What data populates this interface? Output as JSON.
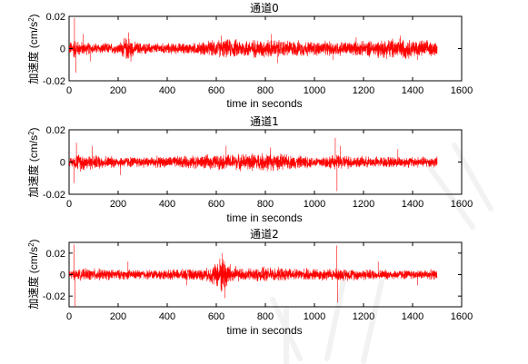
{
  "chart_data": [
    {
      "type": "line",
      "title": "通道0",
      "xlabel": "time in seconds",
      "ylabel": "加速度 (cm/s",
      "ylabel_sup": "2",
      "ylabel_close": ")",
      "xlim": [
        0,
        1600
      ],
      "ylim": [
        -0.02,
        0.02
      ],
      "xticks": [
        0,
        200,
        400,
        600,
        800,
        1000,
        1200,
        1400,
        1600
      ],
      "yticks": [
        -0.02,
        0,
        0.02
      ],
      "ytick_labels": [
        "-0.02",
        "0",
        "0.02"
      ],
      "x_end": 1500,
      "color": "#ff0000",
      "grid": false,
      "series": [
        {
          "envelope": [
            [
              0,
              0.003
            ],
            [
              20,
              0.006
            ],
            [
              40,
              0.004
            ],
            [
              100,
              0.003
            ],
            [
              200,
              0.003
            ],
            [
              240,
              0.007
            ],
            [
              260,
              0.004
            ],
            [
              300,
              0.003
            ],
            [
              500,
              0.003
            ],
            [
              620,
              0.005
            ],
            [
              800,
              0.005
            ],
            [
              1000,
              0.004
            ],
            [
              1200,
              0.004
            ],
            [
              1340,
              0.006
            ],
            [
              1400,
              0.005
            ],
            [
              1500,
              0.004
            ]
          ],
          "spikes": [
            [
              22,
              0.019
            ],
            [
              27,
              -0.015
            ],
            [
              58,
              0.009
            ],
            [
              88,
              -0.008
            ],
            [
              243,
              0.01
            ],
            [
              252,
              -0.008
            ],
            [
              620,
              0.008
            ],
            [
              825,
              0.009
            ],
            [
              850,
              -0.009
            ],
            [
              1075,
              -0.007
            ],
            [
              1170,
              0.007
            ],
            [
              1350,
              0.008
            ],
            [
              1420,
              -0.007
            ]
          ]
        }
      ]
    },
    {
      "type": "line",
      "title": "通道1",
      "xlabel": "time in seconds",
      "ylabel": "加速度 (cm/s",
      "ylabel_sup": "2",
      "ylabel_close": ")",
      "xlim": [
        0,
        1600
      ],
      "ylim": [
        -0.02,
        0.02
      ],
      "xticks": [
        0,
        200,
        400,
        600,
        800,
        1000,
        1200,
        1400,
        1600
      ],
      "yticks": [
        -0.02,
        0,
        0.02
      ],
      "ytick_labels": [
        "-0.02",
        "0",
        "0.02"
      ],
      "x_end": 1500,
      "color": "#ff0000",
      "grid": false,
      "series": [
        {
          "envelope": [
            [
              0,
              0.002
            ],
            [
              40,
              0.005
            ],
            [
              100,
              0.004
            ],
            [
              200,
              0.003
            ],
            [
              400,
              0.003
            ],
            [
              600,
              0.004
            ],
            [
              800,
              0.005
            ],
            [
              900,
              0.004
            ],
            [
              1000,
              0.003
            ],
            [
              1100,
              0.004
            ],
            [
              1200,
              0.003
            ],
            [
              1400,
              0.003
            ],
            [
              1500,
              0.003
            ]
          ],
          "spikes": [
            [
              20,
              -0.013
            ],
            [
              30,
              0.012
            ],
            [
              95,
              0.01
            ],
            [
              210,
              -0.008
            ],
            [
              640,
              0.01
            ],
            [
              820,
              0.009
            ],
            [
              1085,
              0.015
            ],
            [
              1092,
              -0.018
            ],
            [
              1105,
              0.01
            ],
            [
              1340,
              0.008
            ]
          ]
        }
      ]
    },
    {
      "type": "line",
      "title": "通道2",
      "xlabel": "time in seconds",
      "ylabel": "加速度 (cm/s",
      "ylabel_sup": "2",
      "ylabel_close": ")",
      "xlim": [
        0,
        1600
      ],
      "ylim": [
        -0.03,
        0.03
      ],
      "xticks": [
        0,
        200,
        400,
        600,
        800,
        1000,
        1200,
        1400,
        1600
      ],
      "yticks": [
        -0.02,
        0,
        0.02
      ],
      "ytick_labels": [
        "-0.02",
        "0",
        "0.02"
      ],
      "x_end": 1500,
      "color": "#ff0000",
      "grid": false,
      "series": [
        {
          "envelope": [
            [
              0,
              0.004
            ],
            [
              100,
              0.005
            ],
            [
              200,
              0.004
            ],
            [
              400,
              0.004
            ],
            [
              560,
              0.005
            ],
            [
              600,
              0.01
            ],
            [
              620,
              0.016
            ],
            [
              640,
              0.014
            ],
            [
              660,
              0.008
            ],
            [
              700,
              0.005
            ],
            [
              800,
              0.006
            ],
            [
              900,
              0.005
            ],
            [
              1100,
              0.005
            ],
            [
              1300,
              0.004
            ],
            [
              1500,
              0.004
            ]
          ],
          "spikes": [
            [
              20,
              0.028
            ],
            [
              25,
              -0.03
            ],
            [
              240,
              0.012
            ],
            [
              480,
              -0.01
            ],
            [
              625,
              0.02
            ],
            [
              635,
              -0.022
            ],
            [
              1090,
              0.027
            ],
            [
              1095,
              -0.026
            ],
            [
              1260,
              0.012
            ],
            [
              1420,
              -0.01
            ]
          ]
        }
      ]
    }
  ]
}
